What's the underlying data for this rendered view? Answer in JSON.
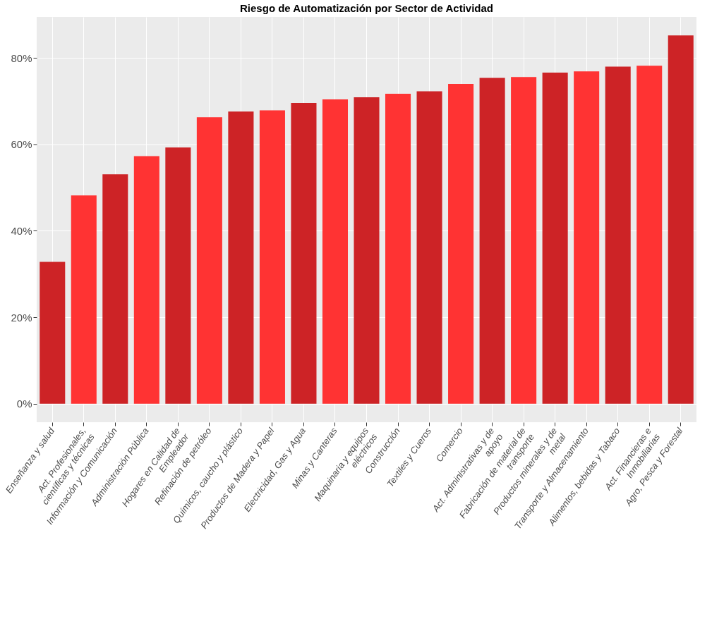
{
  "chart_data": {
    "type": "bar",
    "title": "Riesgo de Automatización por Sector de Actividad",
    "categories": [
      "Enseñanza y salud",
      "Act. Profesionales,\ncientíficas y técnicas",
      "Información y Comunicación",
      "Administración Pública",
      "Hogares en Calidad de\nEmpleador",
      "Refinación de petróleo",
      "Químicos, caucho y plástico",
      "Productos de Madera y Papel",
      "Electricidad, Gas y Agua",
      "Minas y Canteras",
      "Maquinaria y equipos\neléctricos",
      "Construcción",
      "Textiles y Cueros",
      "Comercio",
      "Act. Administrativas y de\napoyo",
      "Fabricación de material de\ntransporte",
      "Productos minerales y de\nmetal",
      "Transporte y Almacenamiento",
      "Alimentos, bebidas y Tabaco",
      "Act. Financieras e\nInmobiliarias",
      "Agro, Pesca y Forestal"
    ],
    "values": [
      32.8,
      48.2,
      53.1,
      57.3,
      59.3,
      66.3,
      67.6,
      67.9,
      69.6,
      70.4,
      70.9,
      71.7,
      72.3,
      74.0,
      75.4,
      75.6,
      76.6,
      76.9,
      78.0,
      78.2,
      85.2
    ],
    "colors": [
      "#cd2326",
      "#ff3333",
      "#cd2326",
      "#ff3333",
      "#cd2326",
      "#ff3333",
      "#cd2326",
      "#ff3333",
      "#cd2326",
      "#ff3333",
      "#cd2326",
      "#ff3333",
      "#cd2326",
      "#ff3333",
      "#cd2326",
      "#ff3333",
      "#cd2326",
      "#ff3333",
      "#cd2326",
      "#ff3333",
      "#cd2326"
    ],
    "ylim": [
      -4.3,
      89.5
    ],
    "yticks": [
      {
        "value": 0,
        "label": "0%"
      },
      {
        "value": 20,
        "label": "20%"
      },
      {
        "value": 40,
        "label": "40%"
      },
      {
        "value": 60,
        "label": "60%"
      },
      {
        "value": 80,
        "label": "80%"
      }
    ],
    "grid": true
  }
}
